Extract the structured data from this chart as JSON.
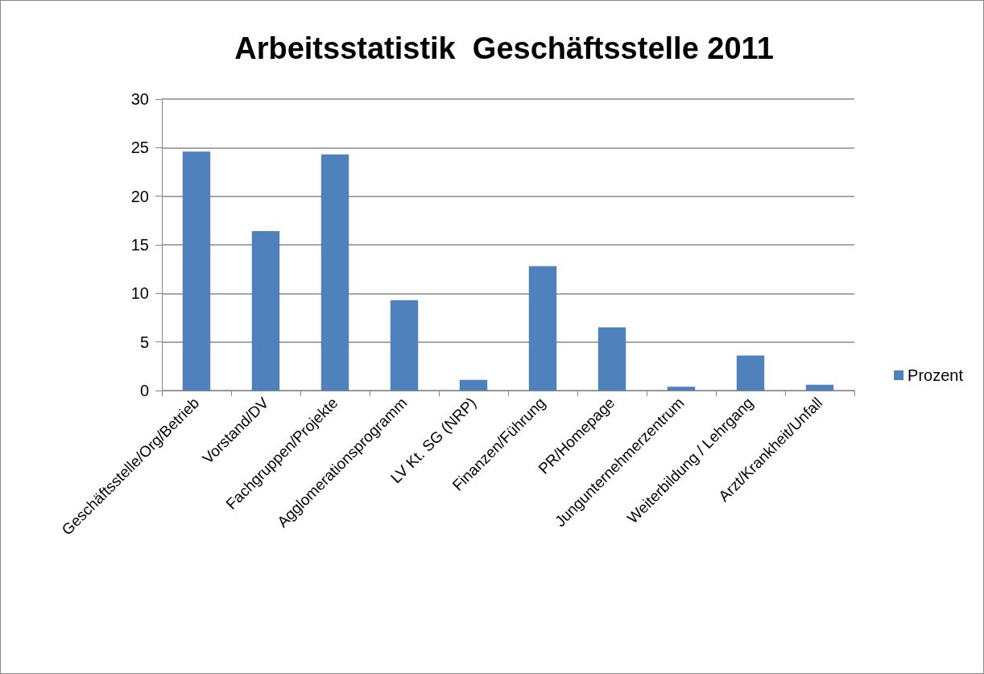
{
  "chart_data": {
    "type": "bar",
    "title": "Arbeitsstatistik  Geschäftsstelle 2011",
    "categories": [
      "Geschäftsstelle/Org/Betrieb",
      "Vorstand/DV",
      "Fachgruppen/Projekte",
      "Agglomerationsprogramm",
      "LV Kt. SG (NRP)",
      "Finanzen/Führung",
      "PR/Homepage",
      "Jungunternehmerzentrum",
      "Weiterbildung / Lehrgang",
      "Arzt/Krankheit/Unfall"
    ],
    "series": [
      {
        "name": "Prozent",
        "color": "#4f81bd",
        "values": [
          24.6,
          16.4,
          24.3,
          9.3,
          1.1,
          12.8,
          6.5,
          0.4,
          3.6,
          0.6
        ]
      }
    ],
    "ylim": [
      0,
      30
    ],
    "yticks": [
      0,
      5,
      10,
      15,
      20,
      25,
      30
    ],
    "grid": "y",
    "legend": "right"
  }
}
